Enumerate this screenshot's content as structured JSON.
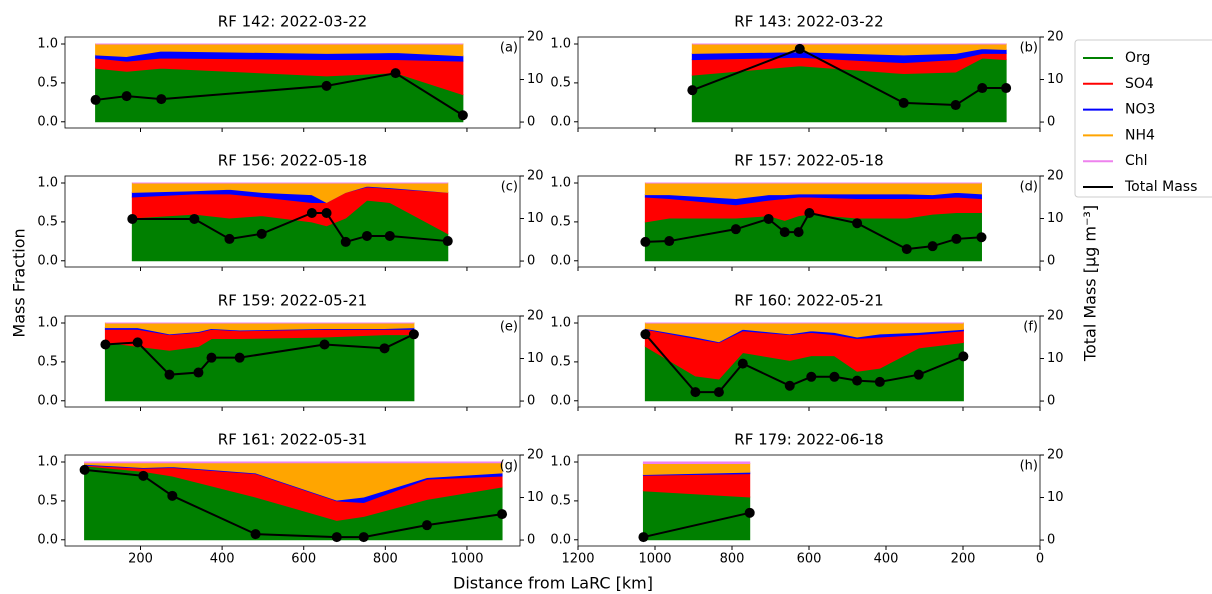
{
  "xlabel": "Distance from LaRC [km]",
  "ylabel": "Mass Fraction",
  "y2label": "Total Mass [μg m⁻³]",
  "chart_data": [
    {
      "type": "area",
      "title": "RF 142: 2022-03-22",
      "panel_label": "(a)",
      "x": [
        90,
        166,
        251,
        656,
        825,
        990
      ],
      "series": [
        {
          "name": "Org",
          "color": "#008000",
          "values": [
            0.69,
            0.65,
            0.69,
            0.59,
            0.63,
            0.35
          ]
        },
        {
          "name": "SO4",
          "color": "#ff0000",
          "values": [
            0.13,
            0.13,
            0.13,
            0.21,
            0.17,
            0.43
          ]
        },
        {
          "name": "NO3",
          "color": "#0000ff",
          "values": [
            0.04,
            0.06,
            0.09,
            0.08,
            0.09,
            0.07
          ]
        },
        {
          "name": "NH4",
          "color": "#ffa500",
          "values": [
            0.14,
            0.16,
            0.09,
            0.12,
            0.11,
            0.15
          ]
        },
        {
          "name": "Chl",
          "color": "#ee82ee",
          "values": [
            0,
            0,
            0,
            0,
            0,
            0
          ]
        },
        {
          "name": "Total Mass",
          "color": "#000000",
          "axis": "y2",
          "values": [
            5.2,
            6.1,
            5.4,
            8.5,
            11.5,
            1.6
          ]
        }
      ],
      "xlim": [
        15,
        1130
      ],
      "xticks": [
        200,
        400,
        600,
        800,
        1000
      ],
      "ylim": [
        -0.08,
        1.09
      ],
      "yticks": [
        {
          "value": 0,
          "label": "0.0"
        },
        {
          "value": 0.5,
          "label": "0.5"
        },
        {
          "value": 1,
          "label": "1.0"
        }
      ],
      "y2lim": [
        -1.4,
        20
      ],
      "y2ticks": [
        0,
        10,
        20
      ]
    },
    {
      "type": "area",
      "title": "RF 143: 2022-03-22",
      "panel_label": "(b)",
      "x": [
        903,
        624,
        354,
        219,
        150,
        88
      ],
      "series": [
        {
          "name": "Org",
          "color": "#008000",
          "values": [
            0.6,
            0.72,
            0.62,
            0.64,
            0.82,
            0.8
          ]
        },
        {
          "name": "SO4",
          "color": "#ff0000",
          "values": [
            0.2,
            0.11,
            0.14,
            0.16,
            0.06,
            0.08
          ]
        },
        {
          "name": "NO3",
          "color": "#0000ff",
          "values": [
            0.08,
            0.07,
            0.1,
            0.08,
            0.06,
            0.05
          ]
        },
        {
          "name": "NH4",
          "color": "#ffa500",
          "values": [
            0.12,
            0.1,
            0.14,
            0.12,
            0.06,
            0.07
          ]
        },
        {
          "name": "Chl",
          "color": "#ee82ee",
          "values": [
            0,
            0,
            0,
            0,
            0,
            0
          ]
        },
        {
          "name": "Total Mass",
          "color": "#000000",
          "axis": "y2",
          "values": [
            7.5,
            17.2,
            4.5,
            4,
            8,
            8
          ]
        }
      ],
      "xlim": [
        1200,
        0
      ],
      "xticks": [
        1200,
        1000,
        800,
        600,
        400,
        200,
        0
      ],
      "ylim": [
        -0.08,
        1.09
      ],
      "yticks": [
        {
          "value": 0,
          "label": "0.0"
        },
        {
          "value": 0.5,
          "label": "0.5"
        },
        {
          "value": 1,
          "label": "1.0"
        }
      ],
      "y2lim": [
        -1.4,
        20
      ],
      "y2ticks": [
        0,
        10,
        20
      ]
    },
    {
      "type": "area",
      "title": "RF 156: 2022-05-18",
      "panel_label": "(c)",
      "x": [
        180,
        332,
        418,
        497,
        620,
        656,
        703,
        755,
        811,
        953
      ],
      "series": [
        {
          "name": "Org",
          "color": "#008000",
          "values": [
            0.55,
            0.6,
            0.55,
            0.58,
            0.5,
            0.45,
            0.55,
            0.78,
            0.75,
            0.35
          ]
        },
        {
          "name": "SO4",
          "color": "#ff0000",
          "values": [
            0.27,
            0.26,
            0.31,
            0.24,
            0.25,
            0.3,
            0.33,
            0.17,
            0.18,
            0.53
          ]
        },
        {
          "name": "NO3",
          "color": "#0000ff",
          "values": [
            0.06,
            0.04,
            0.06,
            0.06,
            0.1,
            0,
            0,
            0.01,
            0.01,
            0
          ]
        },
        {
          "name": "NH4",
          "color": "#ffa500",
          "values": [
            0.12,
            0.1,
            0.08,
            0.12,
            0.15,
            0.25,
            0.12,
            0.04,
            0.06,
            0.12
          ]
        },
        {
          "name": "Chl",
          "color": "#ee82ee",
          "values": [
            0,
            0,
            0,
            0,
            0,
            0,
            0,
            0,
            0,
            0
          ]
        },
        {
          "name": "Total Mass",
          "color": "#000000",
          "axis": "y2",
          "values": [
            9.9,
            9.9,
            5.2,
            6.4,
            11.3,
            11.3,
            4.5,
            5.9,
            5.9,
            4.7
          ]
        }
      ],
      "xlim": [
        15,
        1130
      ],
      "xticks": [
        200,
        400,
        600,
        800,
        1000
      ],
      "ylim": [
        -0.08,
        1.09
      ],
      "yticks": [
        {
          "value": 0,
          "label": "0.0"
        },
        {
          "value": 0.5,
          "label": "0.5"
        },
        {
          "value": 1,
          "label": "1.0"
        }
      ],
      "y2lim": [
        -1.4,
        20
      ],
      "y2ticks": [
        0,
        10,
        20
      ]
    },
    {
      "type": "area",
      "title": "RF 157: 2022-05-18",
      "panel_label": "(d)",
      "x": [
        1025,
        963,
        790,
        705,
        663,
        627,
        599,
        475,
        346,
        279,
        217,
        152
      ],
      "series": [
        {
          "name": "Org",
          "color": "#008000",
          "values": [
            0.5,
            0.55,
            0.55,
            0.58,
            0.52,
            0.58,
            0.6,
            0.55,
            0.55,
            0.6,
            0.62,
            0.62
          ]
        },
        {
          "name": "SO4",
          "color": "#ff0000",
          "values": [
            0.32,
            0.25,
            0.17,
            0.2,
            0.28,
            0.24,
            0.22,
            0.25,
            0.25,
            0.2,
            0.2,
            0.18
          ]
        },
        {
          "name": "NO3",
          "color": "#0000ff",
          "values": [
            0.03,
            0.05,
            0.08,
            0.07,
            0.05,
            0.04,
            0.04,
            0.06,
            0.06,
            0.05,
            0.06,
            0.06
          ]
        },
        {
          "name": "NH4",
          "color": "#ffa500",
          "values": [
            0.15,
            0.15,
            0.2,
            0.15,
            0.15,
            0.14,
            0.14,
            0.14,
            0.14,
            0.15,
            0.12,
            0.14
          ]
        },
        {
          "name": "Chl",
          "color": "#ee82ee",
          "values": [
            0,
            0,
            0,
            0,
            0,
            0,
            0,
            0,
            0,
            0,
            0,
            0
          ]
        },
        {
          "name": "Total Mass",
          "color": "#000000",
          "axis": "y2",
          "values": [
            4.5,
            4.7,
            7.5,
            9.9,
            6.8,
            6.8,
            11.3,
            8.9,
            2.8,
            3.5,
            5.2,
            5.6
          ]
        }
      ],
      "xlim": [
        1200,
        0
      ],
      "xticks": [
        1200,
        1000,
        800,
        600,
        400,
        200,
        0
      ],
      "ylim": [
        -0.08,
        1.09
      ],
      "yticks": [
        {
          "value": 0,
          "label": "0.0"
        },
        {
          "value": 0.5,
          "label": "0.5"
        },
        {
          "value": 1,
          "label": "1.0"
        }
      ],
      "y2lim": [
        -1.4,
        20
      ],
      "y2ticks": [
        0,
        10,
        20
      ]
    },
    {
      "type": "area",
      "title": "RF 159: 2022-05-21",
      "panel_label": "(e)",
      "x": [
        114,
        193,
        271,
        342,
        374,
        443,
        651,
        798,
        870
      ],
      "series": [
        {
          "name": "Org",
          "color": "#008000",
          "values": [
            0.75,
            0.7,
            0.65,
            0.7,
            0.8,
            0.8,
            0.82,
            0.85,
            0.85
          ]
        },
        {
          "name": "SO4",
          "color": "#ff0000",
          "values": [
            0.17,
            0.22,
            0.2,
            0.18,
            0.12,
            0.1,
            0.1,
            0.07,
            0.07
          ]
        },
        {
          "name": "NO3",
          "color": "#0000ff",
          "values": [
            0.02,
            0.02,
            0.01,
            0.01,
            0.01,
            0.01,
            0.01,
            0.01,
            0.02
          ]
        },
        {
          "name": "NH4",
          "color": "#ffa500",
          "values": [
            0.06,
            0.06,
            0.14,
            0.11,
            0.07,
            0.09,
            0.07,
            0.07,
            0.06
          ]
        },
        {
          "name": "Chl",
          "color": "#ee82ee",
          "values": [
            0,
            0,
            0,
            0,
            0,
            0,
            0,
            0,
            0
          ]
        },
        {
          "name": "Total Mass",
          "color": "#000000",
          "axis": "y2",
          "values": [
            13.3,
            13.8,
            6.2,
            6.7,
            10.2,
            10.2,
            13.3,
            12.4,
            15.7
          ]
        }
      ],
      "xlim": [
        15,
        1130
      ],
      "xticks": [
        200,
        400,
        600,
        800,
        1000
      ],
      "ylim": [
        -0.08,
        1.09
      ],
      "yticks": [
        {
          "value": 0,
          "label": "0.0"
        },
        {
          "value": 0.5,
          "label": "0.5"
        },
        {
          "value": 1,
          "label": "1.0"
        }
      ],
      "y2lim": [
        -1.4,
        20
      ],
      "y2ticks": [
        0,
        10,
        20
      ]
    },
    {
      "type": "area",
      "title": "RF 160: 2022-05-21",
      "panel_label": "(f)",
      "x": [
        1025,
        895,
        834,
        772,
        650,
        594,
        534,
        475,
        416,
        315,
        199
      ],
      "series": [
        {
          "name": "Org",
          "color": "#008000",
          "values": [
            0.7,
            0.32,
            0.28,
            0.62,
            0.52,
            0.58,
            0.58,
            0.38,
            0.42,
            0.68,
            0.75
          ]
        },
        {
          "name": "SO4",
          "color": "#ff0000",
          "values": [
            0.22,
            0.48,
            0.47,
            0.28,
            0.33,
            0.3,
            0.27,
            0.42,
            0.4,
            0.17,
            0.15
          ]
        },
        {
          "name": "NO3",
          "color": "#0000ff",
          "values": [
            0.01,
            0.02,
            0.01,
            0.02,
            0.01,
            0.02,
            0.03,
            0.02,
            0.04,
            0.03,
            0.02
          ]
        },
        {
          "name": "NH4",
          "color": "#ffa500",
          "values": [
            0.07,
            0.18,
            0.24,
            0.08,
            0.14,
            0.1,
            0.12,
            0.18,
            0.14,
            0.12,
            0.08
          ]
        },
        {
          "name": "Chl",
          "color": "#ee82ee",
          "values": [
            0,
            0,
            0,
            0,
            0,
            0,
            0,
            0,
            0,
            0,
            0
          ]
        },
        {
          "name": "Total Mass",
          "color": "#000000",
          "axis": "y2",
          "values": [
            15.7,
            2.1,
            2.1,
            8.8,
            3.6,
            5.7,
            5.7,
            4.8,
            4.5,
            6.2,
            10.5
          ]
        }
      ],
      "xlim": [
        1200,
        0
      ],
      "xticks": [
        1200,
        1000,
        800,
        600,
        400,
        200,
        0
      ],
      "ylim": [
        -0.08,
        1.09
      ],
      "yticks": [
        {
          "value": 0,
          "label": "0.0"
        },
        {
          "value": 0.5,
          "label": "0.5"
        },
        {
          "value": 1,
          "label": "1.0"
        }
      ],
      "y2lim": [
        -1.4,
        20
      ],
      "y2ticks": [
        0,
        10,
        20
      ]
    },
    {
      "type": "area",
      "title": "RF 161: 2022-05-31",
      "panel_label": "(g)",
      "x": [
        63,
        207,
        278,
        482,
        681,
        747,
        902,
        1086
      ],
      "series": [
        {
          "name": "Org",
          "color": "#008000",
          "values": [
            0.95,
            0.88,
            0.82,
            0.55,
            0.25,
            0.3,
            0.52,
            0.68
          ]
        },
        {
          "name": "SO4",
          "color": "#ff0000",
          "values": [
            0.01,
            0.04,
            0.11,
            0.3,
            0.25,
            0.18,
            0.26,
            0.14
          ]
        },
        {
          "name": "NO3",
          "color": "#0000ff",
          "values": [
            0.01,
            0.01,
            0.01,
            0.01,
            0.01,
            0.07,
            0.02,
            0.04
          ]
        },
        {
          "name": "NH4",
          "color": "#ffa500",
          "values": [
            0.02,
            0.06,
            0.05,
            0.13,
            0.48,
            0.44,
            0.19,
            0.13
          ]
        },
        {
          "name": "Chl",
          "color": "#ee82ee",
          "values": [
            0.01,
            0.01,
            0.01,
            0.01,
            0.01,
            0.01,
            0.01,
            0.01
          ]
        },
        {
          "name": "Total Mass",
          "color": "#000000",
          "axis": "y2",
          "values": [
            16.5,
            15.1,
            10.4,
            1.4,
            0.7,
            0.7,
            3.5,
            6.1
          ]
        }
      ],
      "xlim": [
        15,
        1130
      ],
      "xticks": [
        200,
        400,
        600,
        800,
        1000
      ],
      "ylim": [
        -0.08,
        1.09
      ],
      "yticks": [
        {
          "value": 0,
          "label": "0.0"
        },
        {
          "value": 0.5,
          "label": "0.5"
        },
        {
          "value": 1,
          "label": "1.0"
        }
      ],
      "y2lim": [
        -1.4,
        20
      ],
      "y2ticks": [
        0,
        10,
        20
      ]
    },
    {
      "type": "area",
      "title": "RF 179: 2022-06-18",
      "panel_label": "(h)",
      "x": [
        1030,
        754
      ],
      "series": [
        {
          "name": "Org",
          "color": "#008000",
          "values": [
            0.63,
            0.55
          ]
        },
        {
          "name": "SO4",
          "color": "#ff0000",
          "values": [
            0.2,
            0.3
          ]
        },
        {
          "name": "NO3",
          "color": "#0000ff",
          "values": [
            0.01,
            0.02
          ]
        },
        {
          "name": "NH4",
          "color": "#ffa500",
          "values": [
            0.14,
            0.11
          ]
        },
        {
          "name": "Chl",
          "color": "#ee82ee",
          "values": [
            0.02,
            0.02
          ]
        },
        {
          "name": "Total Mass",
          "color": "#000000",
          "axis": "y2",
          "values": [
            0.7,
            6.4
          ]
        }
      ],
      "xlim": [
        1200,
        0
      ],
      "xticks": [
        1200,
        1000,
        800,
        600,
        400,
        200,
        0
      ],
      "ylim": [
        -0.08,
        1.09
      ],
      "yticks": [
        {
          "value": 0,
          "label": "0.0"
        },
        {
          "value": 0.5,
          "label": "0.5"
        },
        {
          "value": 1,
          "label": "1.0"
        }
      ],
      "y2lim": [
        -1.4,
        20
      ],
      "y2ticks": [
        0,
        10,
        20
      ]
    }
  ]
}
